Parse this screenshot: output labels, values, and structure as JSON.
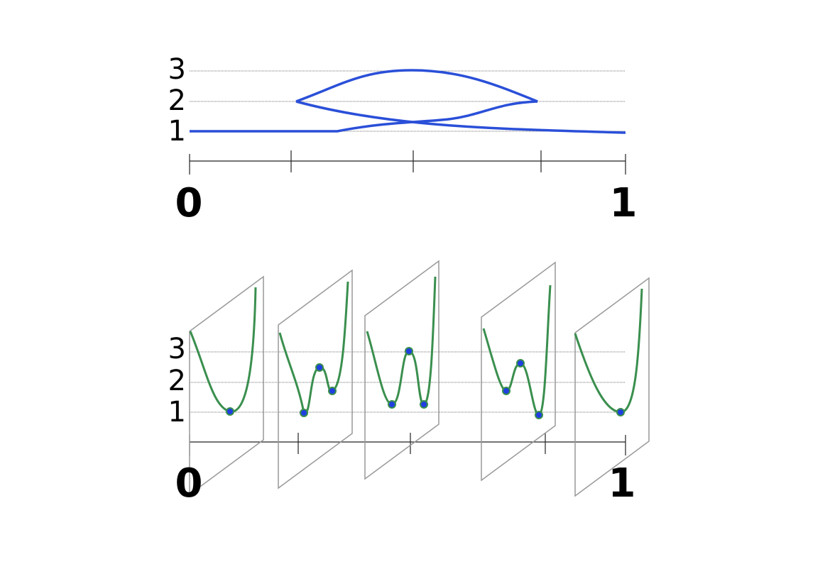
{
  "top": {
    "level_labels": [
      "1",
      "2",
      "3"
    ],
    "axis_labels": [
      "0",
      "1"
    ]
  },
  "bottom": {
    "level_labels": [
      "1",
      "2",
      "3"
    ],
    "axis_labels": [
      "0",
      "1"
    ]
  }
}
